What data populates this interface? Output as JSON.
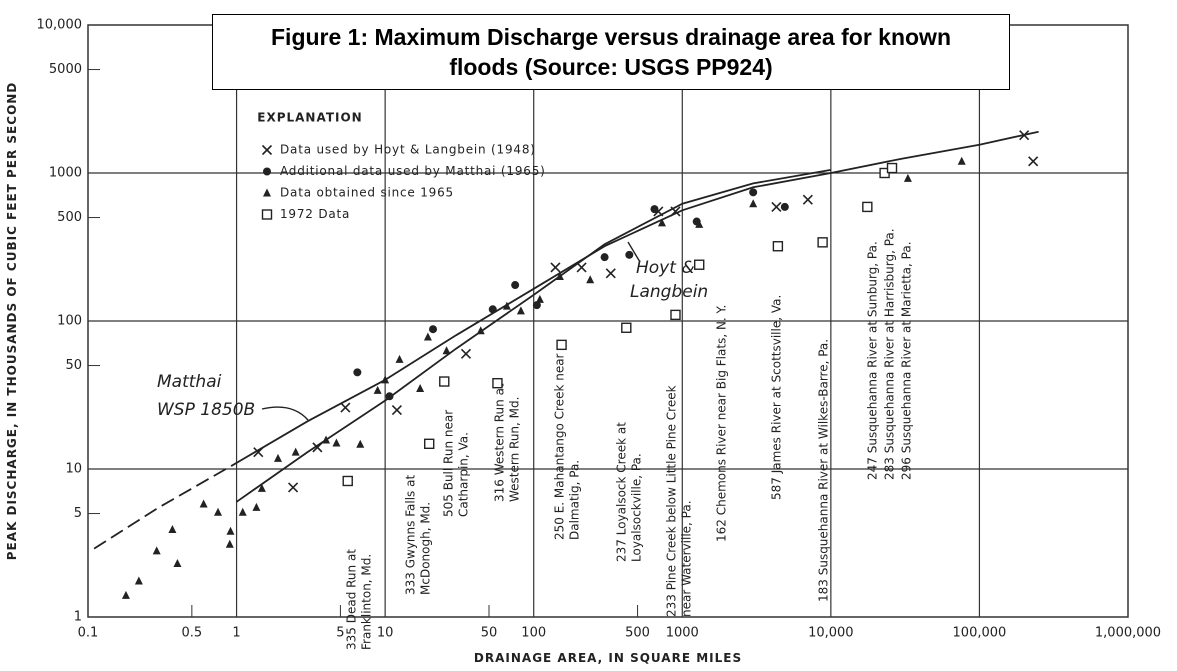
{
  "chart_data": {
    "type": "scatter",
    "title": "Figure 1: Maximum Discharge versus drainage area for known floods (Source: USGS PP924)",
    "x_label": "DRAINAGE AREA, IN SQUARE MILES",
    "y_label": "PEAK DISCHARGE, IN THOUSANDS OF CUBIC FEET PER SECOND",
    "log_x": true,
    "log_y": true,
    "xlim": [
      0.1,
      1000000
    ],
    "ylim": [
      1,
      10000
    ],
    "xticks": [
      0.1,
      0.5,
      1,
      5,
      10,
      50,
      100,
      500,
      1000,
      {
        "value": 10000,
        "label": "10,000"
      },
      {
        "value": 100000,
        "label": "100,000"
      },
      {
        "value": 1000000,
        "label": "1,000,000"
      }
    ],
    "yticks": [
      1,
      5,
      10,
      50,
      100,
      500,
      1000,
      5000,
      {
        "value": 10000,
        "label": "10,000"
      }
    ],
    "grid": true,
    "legend_title": "EXPLANATION",
    "series": [
      {
        "name": "Data used by Hoyt & Langbein (1948)",
        "marker": "x",
        "color": "#222",
        "x": [
          1.4,
          2.4,
          3.5,
          5.4,
          12,
          35,
          140,
          210,
          330,
          690,
          900,
          4300,
          7000,
          200000,
          230000
        ],
        "y": [
          13,
          7.5,
          14,
          26,
          25,
          60,
          230,
          230,
          210,
          550,
          550,
          590,
          660,
          1800,
          1200
        ]
      },
      {
        "name": "Additional data used by Matthai (1965)",
        "marker": "dot",
        "color": "#222",
        "x": [
          6.5,
          10.7,
          21,
          53,
          75,
          105,
          300,
          440,
          650,
          1250,
          3000,
          4900
        ],
        "y": [
          45,
          31,
          88,
          120,
          175,
          128,
          270,
          280,
          570,
          470,
          740,
          590
        ]
      },
      {
        "name": "Data obtained since 1965",
        "marker": "triangle",
        "color": "#222",
        "x": [
          0.18,
          0.22,
          0.29,
          0.37,
          0.4,
          0.6,
          0.75,
          0.9,
          0.91,
          1.1,
          1.36,
          1.48,
          1.9,
          2.5,
          4,
          4.7,
          6.8,
          8.9,
          10,
          12.5,
          17.2,
          19.4,
          25.9,
          44,
          66,
          82,
          110,
          150,
          240,
          730,
          1300,
          3000,
          33000,
          76000
        ],
        "y": [
          1.4,
          1.75,
          2.8,
          3.9,
          2.3,
          5.8,
          5.1,
          3.1,
          3.8,
          5.1,
          5.5,
          7.4,
          11.8,
          13,
          15.7,
          15,
          14.7,
          34,
          40,
          55,
          35,
          78,
          63,
          86,
          126,
          117,
          140,
          200,
          190,
          460,
          450,
          620,
          920,
          1200
        ]
      },
      {
        "name": "1972 Data",
        "marker": "square",
        "color": "#222",
        "x": [
          5.6,
          19.8,
          25,
          57,
          154,
          420,
          900,
          1300,
          4400,
          8800,
          17600,
          23000,
          25800
        ],
        "y": [
          8.3,
          14.8,
          39,
          38,
          69,
          90,
          110,
          240,
          320,
          340,
          590,
          1000,
          1080
        ]
      }
    ],
    "curves": [
      {
        "style": "dashed",
        "x": [
          0.11,
          0.3,
          1
        ],
        "y": [
          2.9,
          5.5,
          11
        ]
      },
      {
        "style": "solid",
        "x": [
          1,
          3,
          10,
          30,
          100,
          300,
          1000,
          3000,
          10000,
          30000,
          100000,
          250000
        ],
        "y": [
          11,
          21,
          40,
          80,
          165,
          320,
          560,
          800,
          1000,
          1250,
          1550,
          1900
        ]
      },
      {
        "style": "solid",
        "x": [
          1,
          3,
          10,
          30,
          100,
          300,
          1000,
          3000,
          10000
        ],
        "y": [
          6,
          13,
          29,
          65,
          150,
          330,
          620,
          850,
          1050
        ]
      }
    ],
    "annotations": [
      "Matthai",
      "WSP 1850B",
      "Hoyt &",
      "Langbein"
    ],
    "stations": [
      {
        "lines": [
          "335 Dead Run at",
          "Franklinton, Md."
        ]
      },
      {
        "lines": [
          "333 Gwynns Falls at",
          "McDonogh, Md."
        ]
      },
      {
        "lines": [
          "505 Bull Run near",
          "Catharpin, Va."
        ]
      },
      {
        "lines": [
          "316 Western Run at",
          "Western Run, Md."
        ]
      },
      {
        "lines": [
          "250 E. Mahantango Creek near",
          "Dalmatig, Pa."
        ]
      },
      {
        "lines": [
          "237 Loyalsock Creek at",
          "Loyalsockville, Pa."
        ]
      },
      {
        "lines": [
          "233 Pine Creek below Little Pine Creek",
          "near Waterville, Pa."
        ]
      },
      {
        "lines": [
          "162 Chemons River near Big Flats, N. Y."
        ]
      },
      {
        "lines": [
          "587 James River at Scottsville, Va."
        ]
      },
      {
        "lines": [
          "183 Susquehanna River at Wilkes-Barre, Pa."
        ]
      },
      {
        "lines": [
          "247 Susquehanna River at Sunburg, Pa."
        ]
      },
      {
        "lines": [
          "283 Susquehanna River at Harrisburg, Pa."
        ]
      },
      {
        "lines": [
          "296 Susquehanna River at Marietta, Pa."
        ]
      }
    ]
  }
}
